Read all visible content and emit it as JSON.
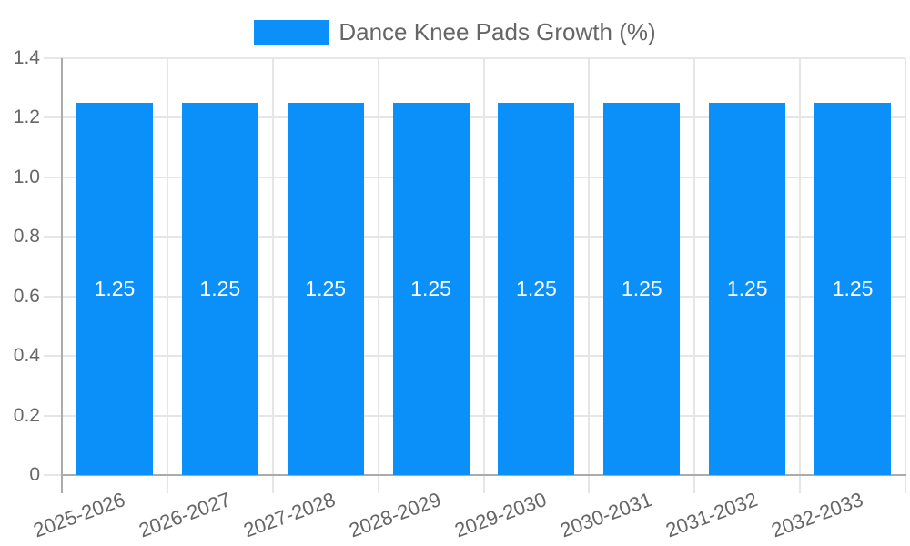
{
  "legend": {
    "label": "Dance Knee Pads Growth (%)"
  },
  "colors": {
    "bar": "#0B90FA",
    "axis_text": "#666666",
    "grid": "#e6e6e6",
    "axis_line": "#ababab",
    "value_label": "#ffffff",
    "background": "#ffffff"
  },
  "chart_data": {
    "type": "bar",
    "title": "Dance Knee Pads Growth (%)",
    "categories": [
      "2025-2026",
      "2026-2027",
      "2027-2028",
      "2028-2029",
      "2029-2030",
      "2030-2031",
      "2031-2032",
      "2032-2033"
    ],
    "values": [
      1.25,
      1.25,
      1.25,
      1.25,
      1.25,
      1.25,
      1.25,
      1.25
    ],
    "value_labels": [
      "1.25",
      "1.25",
      "1.25",
      "1.25",
      "1.25",
      "1.25",
      "1.25",
      "1.25"
    ],
    "xlabel": "",
    "ylabel": "",
    "ylim": [
      0,
      1.4
    ],
    "yticks": [
      0,
      0.2,
      0.4,
      0.6,
      0.8,
      1.0,
      1.2,
      1.4
    ],
    "ytick_labels": [
      "0",
      "0.2",
      "0.4",
      "0.6",
      "0.8",
      "1.0",
      "1.2",
      "1.4"
    ],
    "grid": true,
    "legend_position": "top",
    "bar_label_position": "center"
  }
}
